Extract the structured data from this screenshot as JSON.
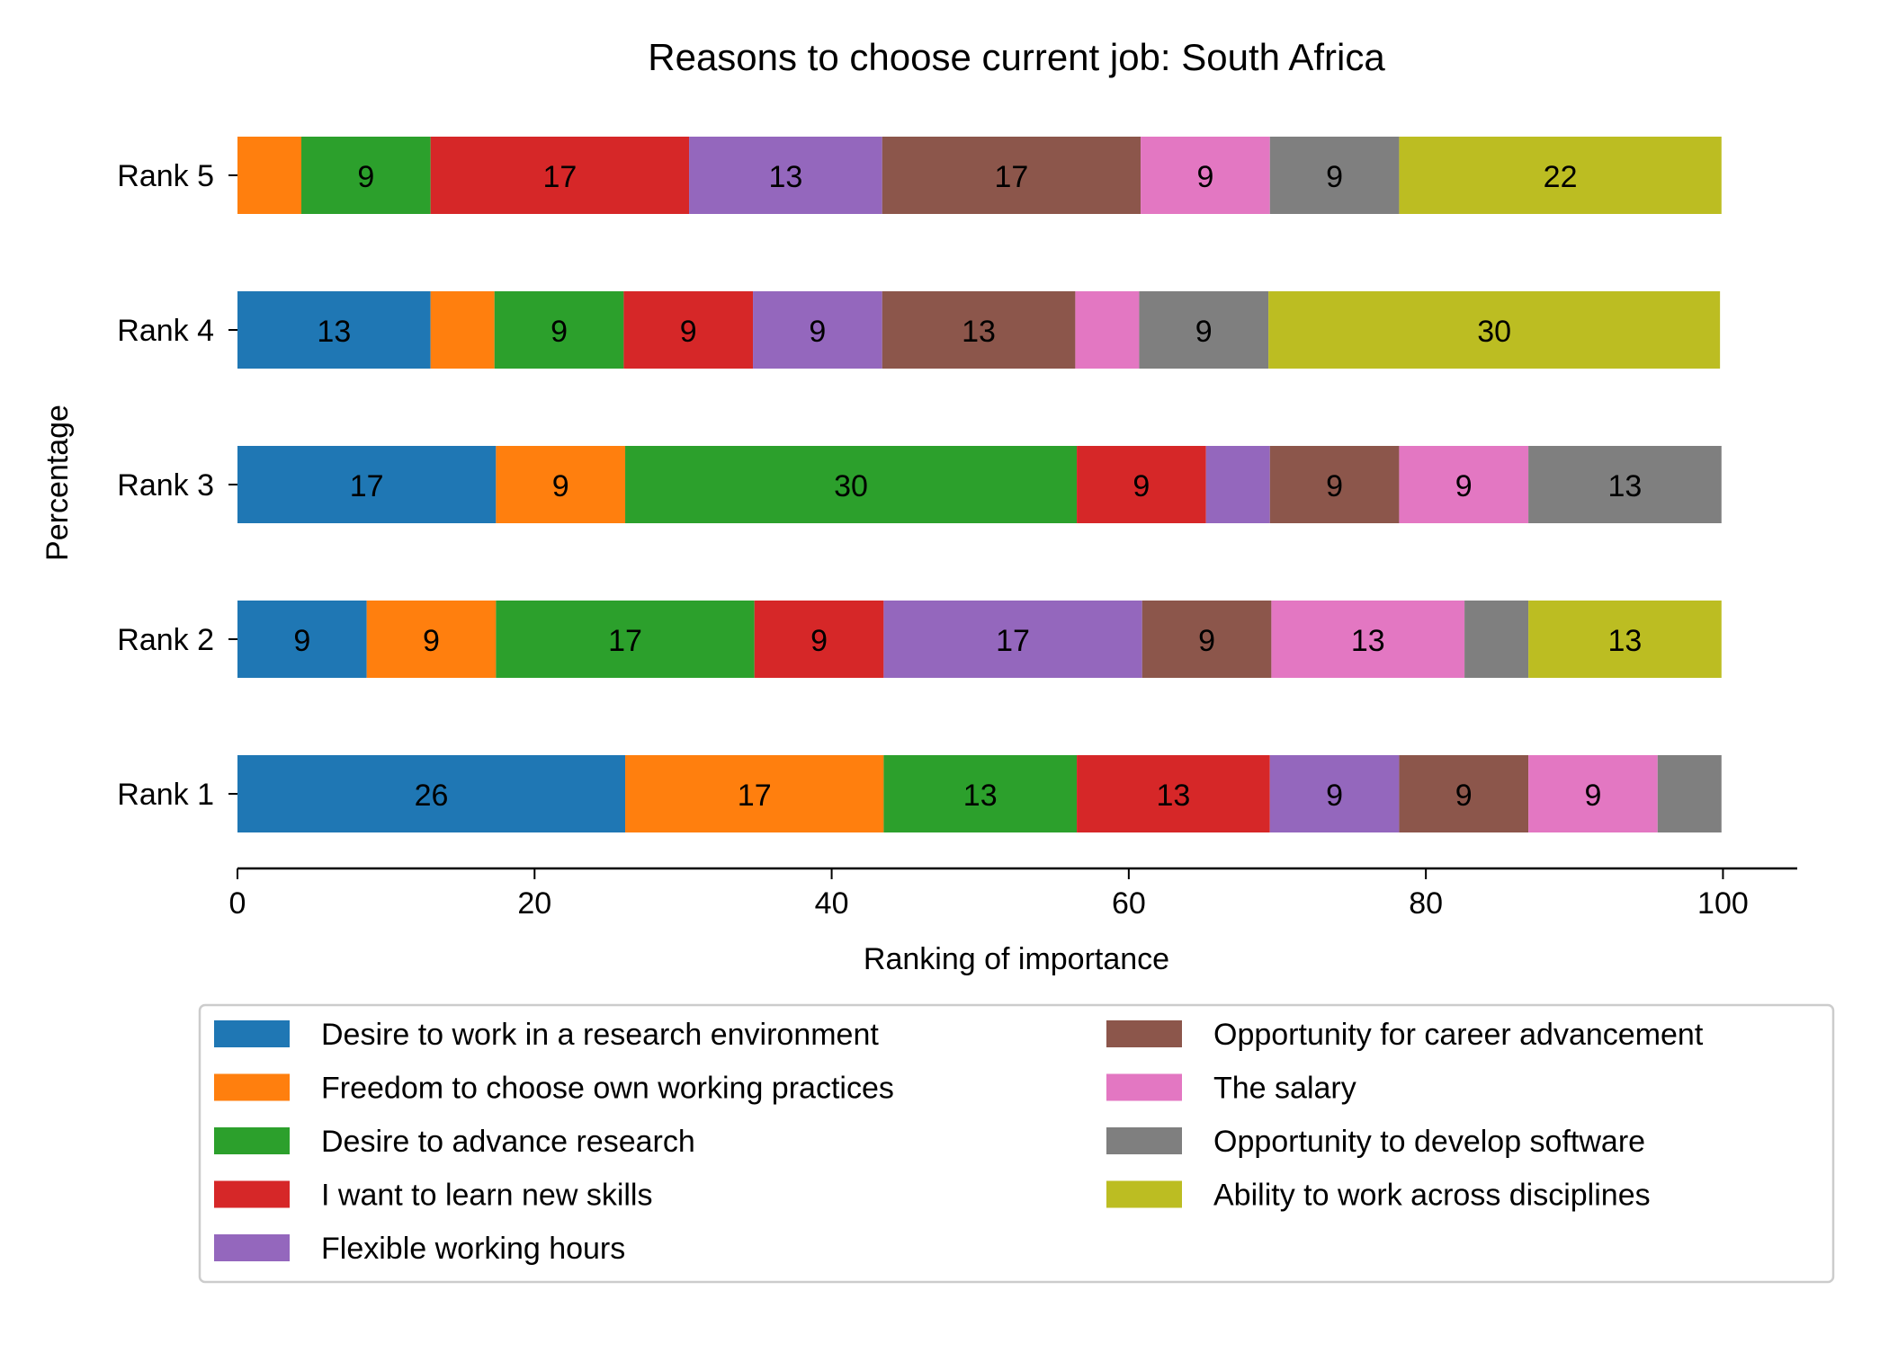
{
  "chart_data": {
    "type": "bar",
    "orientation": "horizontal",
    "stacked": true,
    "title": "Reasons to choose current job: South Africa",
    "xlabel": "Ranking of importance",
    "ylabel": "Percentage",
    "xlim": [
      0,
      105
    ],
    "xticks": [
      0,
      20,
      40,
      60,
      80,
      100
    ],
    "grid": false,
    "legend_position": "bottom",
    "categories": [
      "Rank 1",
      "Rank 2",
      "Rank 3",
      "Rank 4",
      "Rank 5"
    ],
    "series": [
      {
        "name": "Desire to work in a research environment",
        "color": "#1f77b4",
        "values": [
          26.1,
          8.7,
          17.4,
          13.0,
          0.0
        ]
      },
      {
        "name": "Freedom to choose own working practices",
        "color": "#ff7f0e",
        "values": [
          17.4,
          8.7,
          8.7,
          4.3,
          4.3
        ]
      },
      {
        "name": "Desire to advance research",
        "color": "#2ca02c",
        "values": [
          13.0,
          17.4,
          30.4,
          8.7,
          8.7
        ]
      },
      {
        "name": "I want to learn new skills",
        "color": "#d62728",
        "values": [
          13.0,
          8.7,
          8.7,
          8.7,
          17.4
        ]
      },
      {
        "name": "Flexible working hours",
        "color": "#9467bd",
        "values": [
          8.7,
          17.4,
          4.3,
          8.7,
          13.0
        ]
      },
      {
        "name": "Opportunity for career advancement",
        "color": "#8c564b",
        "values": [
          8.7,
          8.7,
          8.7,
          13.0,
          17.4
        ]
      },
      {
        "name": "The salary",
        "color": "#e377c2",
        "values": [
          8.7,
          13.0,
          8.7,
          4.3,
          8.7
        ]
      },
      {
        "name": "Opportunity to develop software",
        "color": "#7f7f7f",
        "values": [
          4.3,
          4.3,
          13.0,
          8.7,
          8.7
        ]
      },
      {
        "name": "Ability to work across disciplines",
        "color": "#bcbd22",
        "values": [
          0.0,
          13.0,
          0.0,
          30.4,
          21.7
        ]
      }
    ]
  }
}
